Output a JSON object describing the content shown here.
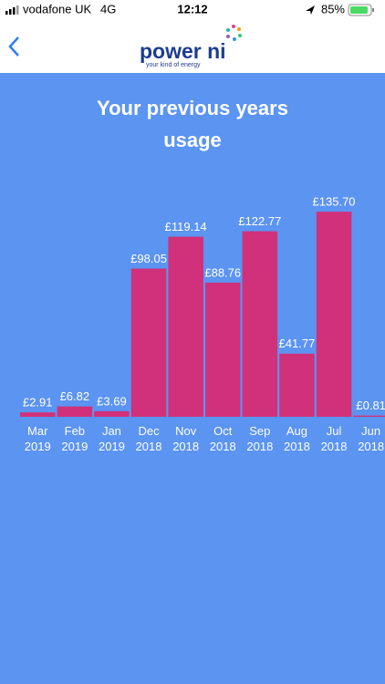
{
  "status_bar": {
    "carrier": "vodafone UK",
    "network": "4G",
    "time": "12:12",
    "battery": "85%"
  },
  "header": {
    "logo": "power ni",
    "tagline": "your kind of energy"
  },
  "chart_data": {
    "type": "bar",
    "title": "Your previous years usage",
    "categories": [
      "Mar 2019",
      "Feb 2019",
      "Jan 2019",
      "Dec 2018",
      "Nov 2018",
      "Oct 2018",
      "Sep 2018",
      "Aug 2018",
      "Jul 2018",
      "Jun 2018"
    ],
    "values": [
      2.91,
      6.82,
      3.69,
      98.05,
      119.14,
      88.76,
      122.77,
      41.77,
      135.7,
      0.81
    ],
    "value_labels": [
      "£2.91",
      "£6.82",
      "£3.69",
      "£98.05",
      "£119.14",
      "£88.76",
      "£122.77",
      "£41.77",
      "£135.70",
      "£0.81"
    ],
    "color": "#d1307a",
    "ylim": [
      0,
      140
    ]
  }
}
